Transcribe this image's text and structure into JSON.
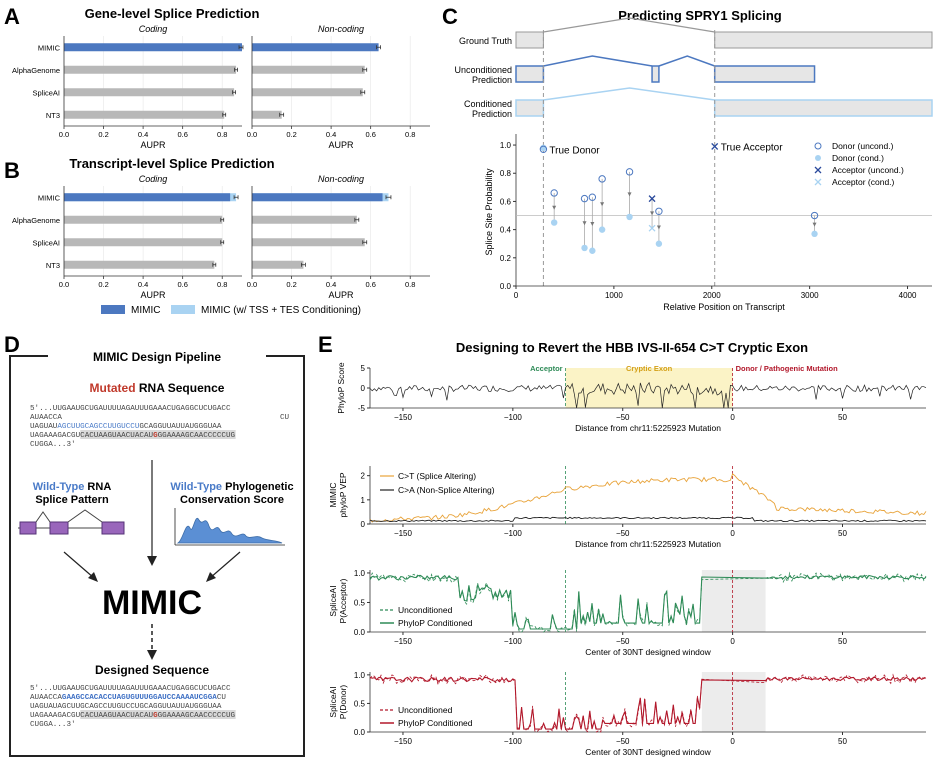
{
  "panel_letters": {
    "a": "A",
    "b": "B",
    "c": "C",
    "d": "D",
    "e": "E"
  },
  "legend_ab": {
    "mimic": "MIMIC",
    "mimic_cond": "MIMIC (w/ TSS + TES Conditioning)"
  },
  "colors": {
    "mimic": "#4c78c0",
    "mimic_cond": "#a9d3f2",
    "bar": "#b8b8b8",
    "orange": "#e8a33a",
    "green": "#2e8b57",
    "red": "#b2182b",
    "purple": "#9966bb",
    "accent_blue": "#4a7bc8"
  },
  "chart_data": [
    {
      "id": "A",
      "type": "bar",
      "title": "Gene-level Splice Prediction",
      "subplots": [
        {
          "subtitle": "Coding",
          "categories": [
            "MIMIC",
            "AlphaGenome",
            "SpliceAI",
            "NT3"
          ],
          "values": [
            0.94,
            0.87,
            0.86,
            0.81
          ],
          "errors": [
            0.02,
            0.015,
            0.015,
            0.015
          ],
          "xlabel": "AUPR",
          "xlim": [
            0,
            0.9
          ],
          "xticks": [
            "0.0",
            "0.2",
            "0.4",
            "0.6",
            "0.8"
          ]
        },
        {
          "subtitle": "Non-coding",
          "categories": [
            "MIMIC",
            "AlphaGenome",
            "SpliceAI",
            "NT3"
          ],
          "values": [
            0.64,
            0.57,
            0.56,
            0.15
          ],
          "errors": [
            0.02,
            0.02,
            0.02,
            0.02
          ],
          "xlabel": "AUPR",
          "xlim": [
            0,
            0.9
          ],
          "xticks": [
            "0.0",
            "0.2",
            "0.4",
            "0.6",
            "0.8"
          ]
        }
      ]
    },
    {
      "id": "B",
      "type": "bar",
      "title": "Transcript-level Splice Prediction",
      "subplots": [
        {
          "subtitle": "Coding",
          "categories": [
            "MIMIC",
            "AlphaGenome",
            "SpliceAI",
            "NT3"
          ],
          "values": [
            0.84,
            0.8,
            0.8,
            0.76
          ],
          "cond_values": [
            0.87,
            null,
            null,
            null
          ],
          "errors": [
            0.02,
            0.015,
            0.015,
            0.015
          ],
          "xlabel": "AUPR",
          "xlim": [
            0,
            0.9
          ],
          "xticks": [
            "0.0",
            "0.2",
            "0.4",
            "0.6",
            "0.8"
          ]
        },
        {
          "subtitle": "Non-coding",
          "categories": [
            "MIMIC",
            "AlphaGenome",
            "SpliceAI",
            "NT3"
          ],
          "values": [
            0.66,
            0.53,
            0.57,
            0.26
          ],
          "cond_values": [
            0.69,
            null,
            null,
            null
          ],
          "errors": [
            0.025,
            0.02,
            0.02,
            0.02
          ],
          "xlabel": "AUPR",
          "xlim": [
            0,
            0.9
          ],
          "xticks": [
            "0.0",
            "0.2",
            "0.4",
            "0.6",
            "0.8"
          ]
        }
      ]
    },
    {
      "id": "C",
      "type": "scatter",
      "title": "Predicting SPRY1 Splicing",
      "track_labels": [
        "Ground Truth",
        "Unconditioned Prediction",
        "Conditioned Prediction"
      ],
      "xlabel": "Relative Position on Transcript",
      "ylabel": "Splice Site Probability",
      "xlim": [
        0,
        4250
      ],
      "ylim": [
        0,
        1.05
      ],
      "xticks": [
        0,
        1000,
        2000,
        3000,
        4000
      ],
      "yticks": [
        0.0,
        0.2,
        0.4,
        0.6,
        0.8,
        1.0
      ],
      "threshold": 0.5,
      "true_donor_x": 280,
      "true_acceptor_x": 2030,
      "annotations": [
        "True Donor",
        "True Acceptor"
      ],
      "legend": [
        "Donor (uncond.)",
        "Donor (cond.)",
        "Acceptor (uncond.)",
        "Acceptor (cond.)"
      ],
      "donor_pairs": [
        {
          "x": 280,
          "uncond": 0.97,
          "cond": 0.98
        },
        {
          "x": 390,
          "uncond": 0.66,
          "cond": 0.45
        },
        {
          "x": 700,
          "uncond": 0.62,
          "cond": 0.27
        },
        {
          "x": 780,
          "uncond": 0.63,
          "cond": 0.25
        },
        {
          "x": 880,
          "uncond": 0.76,
          "cond": 0.4
        },
        {
          "x": 1160,
          "uncond": 0.81,
          "cond": 0.49
        },
        {
          "x": 1460,
          "uncond": 0.53,
          "cond": 0.3
        },
        {
          "x": 3050,
          "uncond": 0.5,
          "cond": 0.37
        }
      ],
      "acceptor_pairs": [
        {
          "x": 1390,
          "uncond": 0.62,
          "cond": 0.41
        },
        {
          "x": 2030,
          "uncond": 0.99,
          "cond": 0.99
        }
      ]
    },
    {
      "id": "E",
      "type": "line",
      "title": "Designing to Revert the HBB IVS-II-654 C>T Cryptic Exon",
      "xlim": [
        -165,
        88
      ],
      "xticks": [
        -150,
        -100,
        -50,
        0,
        50
      ],
      "region_labels": {
        "acceptor": "Acceptor",
        "exon": "Cryptic Exon",
        "donor": "Donor / Pathogenic Mutation"
      },
      "acceptor_x": -76,
      "donor_x": 0,
      "subplots": [
        {
          "ylabel": "PhyloP Score",
          "xlabel": "Distance from chr11:5225923 Mutation",
          "ylim": [
            -5,
            5
          ],
          "yticks": [
            -5,
            0,
            5
          ]
        },
        {
          "ylabel": "MIMIC phyloP VEP",
          "xlabel": "Distance from chr11:5225923 Mutation",
          "ylim": [
            0,
            2.4
          ],
          "yticks": [
            0,
            1,
            2
          ],
          "series": [
            {
              "name": "C>T (Splice Altering)"
            },
            {
              "name": "C>A (Non-Splice Altering)"
            }
          ]
        },
        {
          "ylabel": "SpliceAI P(Acceptor)",
          "xlabel": "Center of 30NT designed window",
          "ylim": [
            0,
            1.05
          ],
          "yticks": [
            0.0,
            0.5,
            1.0
          ],
          "series": [
            {
              "name": "Unconditioned"
            },
            {
              "name": "PhyloP Conditioned"
            }
          ]
        },
        {
          "ylabel": "SpliceAI P(Donor)",
          "xlabel": "Center of 30NT designed window",
          "ylim": [
            0,
            1.05
          ],
          "yticks": [
            0.0,
            0.5,
            1.0
          ],
          "series": [
            {
              "name": "Unconditioned"
            },
            {
              "name": "PhyloP Conditioned"
            }
          ]
        }
      ]
    }
  ],
  "panel_d": {
    "title": "MIMIC Design Pipeline",
    "mutated_word": "Mutated",
    "mutated_rest": " RNA Sequence",
    "seq_line1": "5'...UUGAAUGCUGAUUUUAGAUUUGAAACUGAGGCUCUGACC",
    "seq_line2a": "AUAACCA",
    "seq_line2b": "CU",
    "seq_line3": "UAGUAUAGCUUGCAGCCUUGUCCUGCAGGUUAUUAUGGGUAA",
    "seq_line4a": "UAGAAAGACGU",
    "seq_line4b": "CACUAAGUAACUACAU",
    "seq_line4c": "G",
    "seq_line4d": "GGAAAAGCAACCCCCU",
    "seq_line4e": "G",
    "seq_line5": "CUGGA...3'",
    "wt_word": "Wild-Type",
    "wt_rna": " RNA",
    "splice_pattern": "Splice Pattern",
    "wt_phylo": " Phylogenetic",
    "conservation": "Conservation Score",
    "mimic_big": "MIMIC",
    "designed": "Designed Sequence",
    "des_line1": "5'...UUGAAUGCUGAUUUUAGAUUUGAAACUGAGGCUCUGACC",
    "des_line2a": "AUAACCA",
    "des_line2b": "GAAGCCACACCUAGUGUUUGGAUCCAAAAUCGGA",
    "des_line2c": "CU",
    "des_line3": "UAGUAUAGCUUGCAGCCUUGUCCUGCAGGUUAUUAUGGGUAA",
    "des_line4a": "UAGAAAGACGU",
    "des_line4b": "CACUAAGUAACUACAU",
    "des_line4c": "G",
    "des_line4d": "GGAAAAGCAACCCCCU",
    "des_line4e": "G",
    "des_line5": "CUGGA...3'"
  }
}
